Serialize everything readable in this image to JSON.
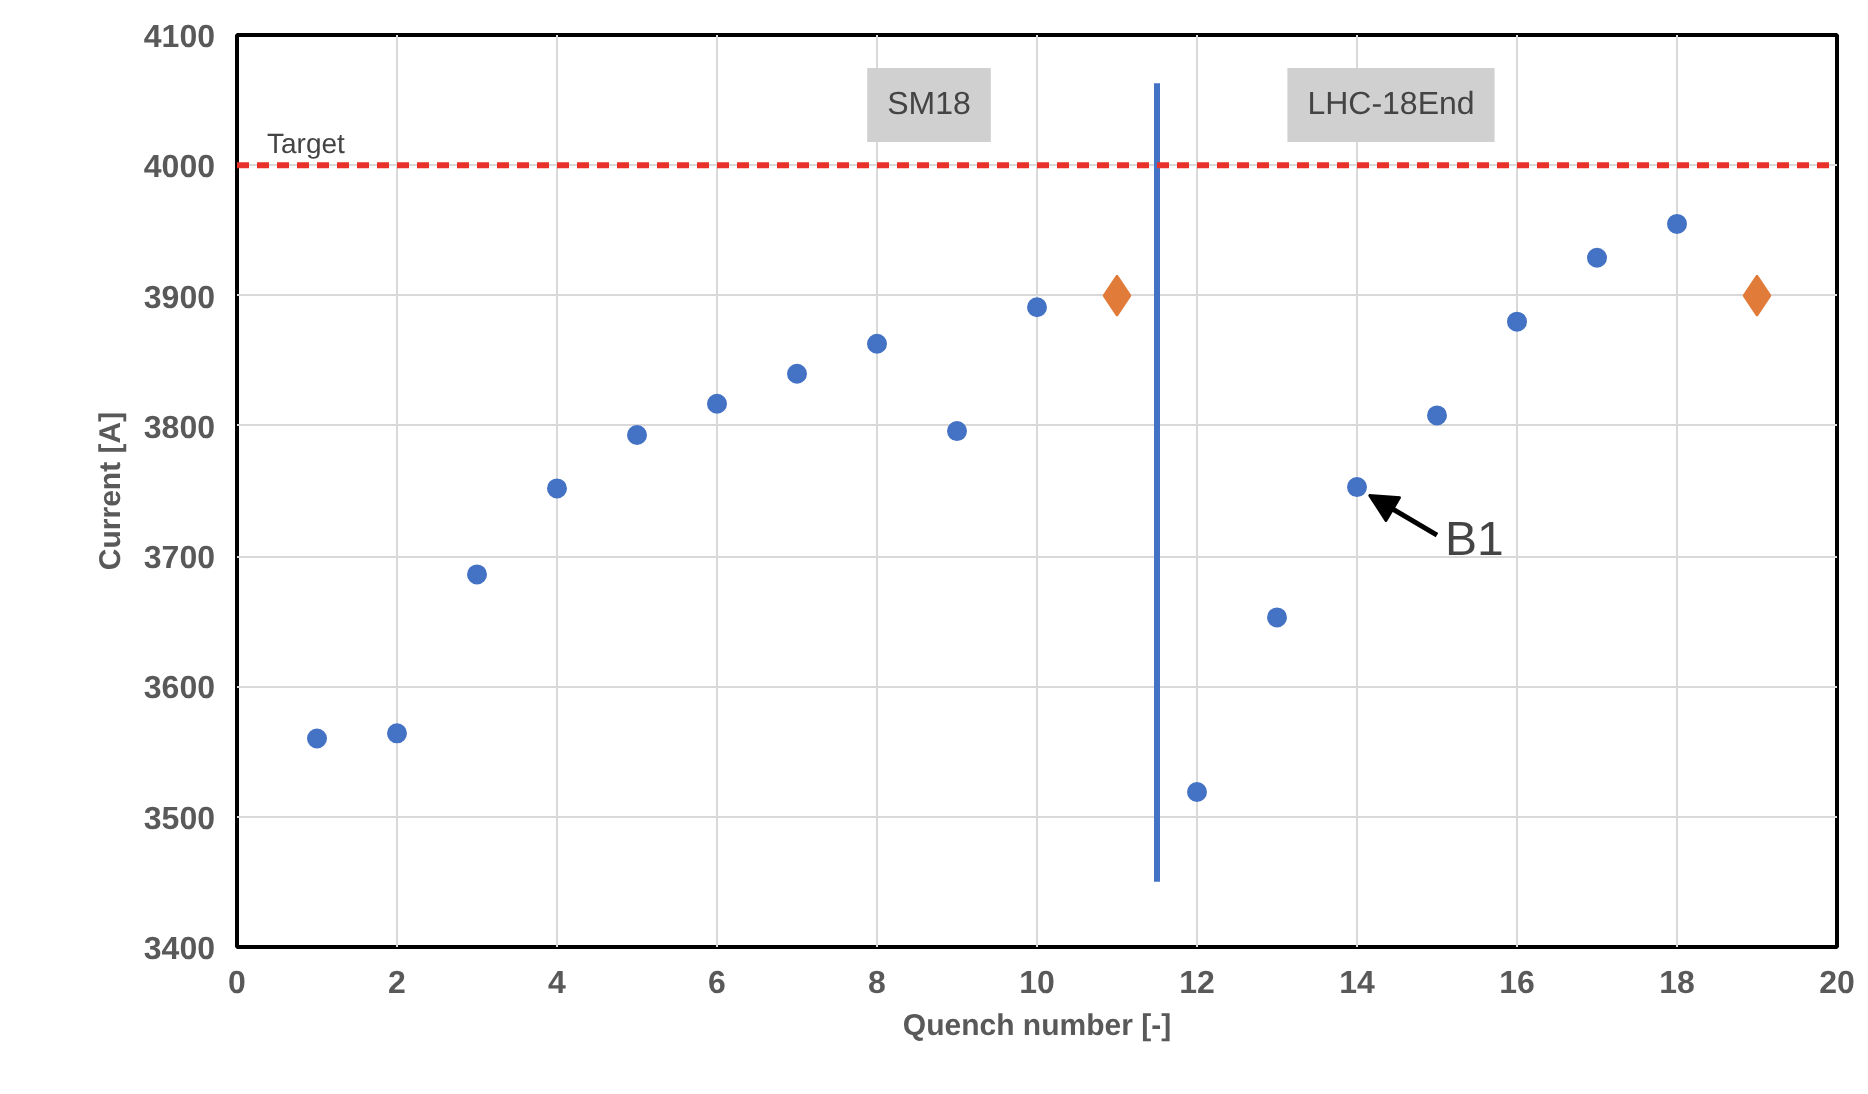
{
  "chart_data": {
    "type": "scatter",
    "xlabel": "Quench number [-]",
    "ylabel": "Current [A]",
    "xlim": [
      0,
      20
    ],
    "ylim": [
      3400,
      4100
    ],
    "xticks": [
      0,
      2,
      4,
      6,
      8,
      10,
      12,
      14,
      16,
      18,
      20
    ],
    "yticks": [
      3400,
      3500,
      3600,
      3700,
      3800,
      3900,
      4000,
      4100
    ],
    "grid": true,
    "series": [
      {
        "color": "#4472c4",
        "marker": "circle",
        "x": [
          1,
          2,
          3,
          4,
          5,
          6,
          7,
          8,
          9,
          10,
          12,
          13,
          14,
          15,
          16,
          17,
          18
        ],
        "values": [
          3560,
          3564,
          3686,
          3752,
          3793,
          3817,
          3840,
          3863,
          3796,
          3891,
          3519,
          3653,
          3753,
          3808,
          3880,
          3929,
          3955
        ]
      },
      {
        "color": "#e07b39",
        "marker": "diamond",
        "x": [
          11,
          19
        ],
        "values": [
          3900,
          3900
        ]
      },
      {
        "type": "line",
        "color": "#4472c4",
        "x": [
          11.5,
          11.5
        ],
        "values": [
          3450,
          4063
        ]
      }
    ],
    "ref_lines": [
      {
        "axis": "y",
        "value": 4000,
        "label": "Target",
        "color": "#e8312a",
        "line_style": "dashed"
      }
    ],
    "annotations": [
      "SM18",
      "LHC-18End",
      {
        "text": "B1",
        "x": 14,
        "y": 3753
      }
    ]
  }
}
